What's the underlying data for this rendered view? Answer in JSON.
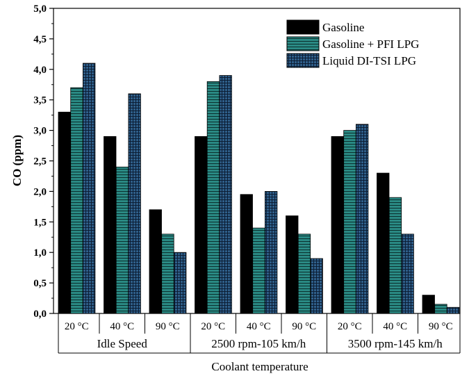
{
  "chart_data": {
    "type": "bar",
    "ylabel": "CO (ppm)",
    "xlabel": "Coolant temperature",
    "ylim": [
      0,
      5
    ],
    "yticks": [
      "0,0",
      "0,5",
      "1,0",
      "1,5",
      "2,0",
      "2,5",
      "3,0",
      "3,5",
      "4,0",
      "4,5",
      "5,0"
    ],
    "groups": [
      {
        "label": "Idle Speed",
        "categories": [
          "20 °C",
          "40 °C",
          "90 °C"
        ]
      },
      {
        "label": "2500 rpm-105 km/h",
        "categories": [
          "20 °C",
          "40 °C",
          "90 °C"
        ]
      },
      {
        "label": "3500 rpm-145 km/h",
        "categories": [
          "20 °C",
          "40 °C",
          "90 °C"
        ]
      }
    ],
    "series": [
      {
        "name": "Gasoline",
        "color": "#000000",
        "pattern": "solid",
        "values": [
          3.3,
          2.9,
          1.7,
          2.9,
          1.95,
          1.6,
          2.9,
          2.3,
          0.3
        ]
      },
      {
        "name": "Gasoline + PFI LPG",
        "color": "#2a8a84",
        "pattern": "horizontal-lines",
        "values": [
          3.7,
          2.4,
          1.3,
          3.8,
          1.4,
          1.3,
          3.0,
          1.9,
          0.15
        ]
      },
      {
        "name": "Liquid DI-TSI LPG",
        "color": "#2f5f8a",
        "pattern": "grid",
        "values": [
          4.1,
          3.6,
          1.0,
          3.9,
          2.0,
          0.9,
          3.1,
          1.3,
          0.1
        ]
      }
    ],
    "legend_position": "top-right",
    "grid": false
  }
}
